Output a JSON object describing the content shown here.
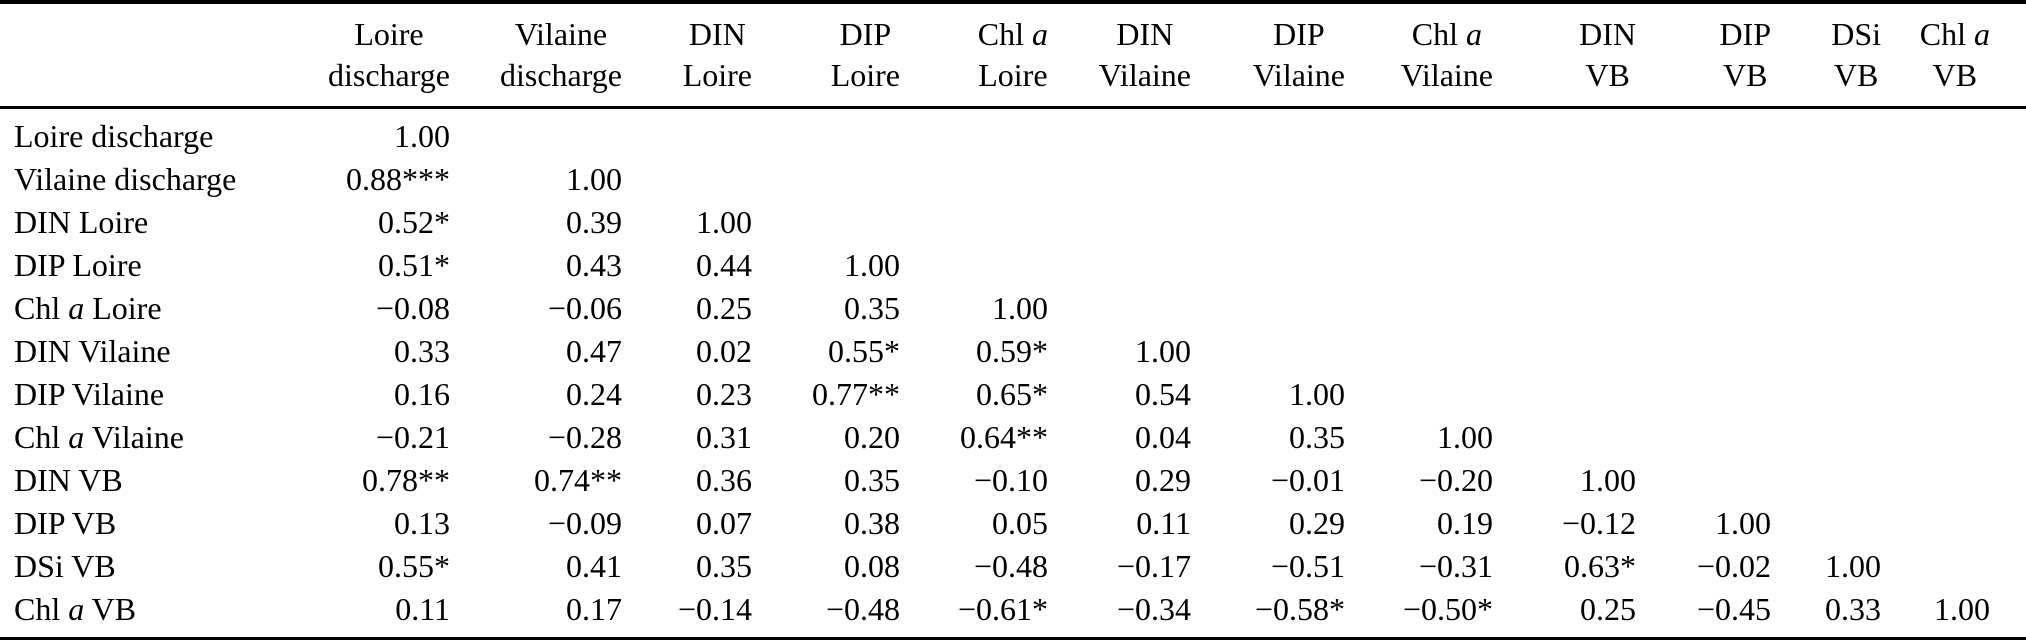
{
  "colors": {
    "background": "#ffffff",
    "text": "#000000",
    "rule": "#000000"
  },
  "table": {
    "corner_label": "",
    "columns": [
      {
        "line1": "Loire",
        "line2": "discharge"
      },
      {
        "line1": "Vilaine",
        "line2": "discharge"
      },
      {
        "line1": "DIN",
        "line2": "Loire"
      },
      {
        "line1": "DIP",
        "line2": "Loire"
      },
      {
        "line1": "Chl |a|",
        "line2": "Loire"
      },
      {
        "line1": "DIN",
        "line2": "Vilaine"
      },
      {
        "line1": "DIP",
        "line2": "Vilaine"
      },
      {
        "line1": "Chl |a|",
        "line2": "Vilaine"
      },
      {
        "line1": "DIN",
        "line2": "VB"
      },
      {
        "line1": "DIP",
        "line2": "VB"
      },
      {
        "line1": "DSi",
        "line2": "VB"
      },
      {
        "line1": "Chl |a|",
        "line2": "VB"
      }
    ],
    "rows": [
      {
        "label": "Loire discharge",
        "values": [
          "1.00",
          "",
          "",
          "",
          "",
          "",
          "",
          "",
          "",
          "",
          "",
          ""
        ]
      },
      {
        "label": "Vilaine discharge",
        "values": [
          "0.88***",
          "1.00",
          "",
          "",
          "",
          "",
          "",
          "",
          "",
          "",
          "",
          ""
        ]
      },
      {
        "label": "DIN Loire",
        "values": [
          "0.52*",
          "0.39",
          "1.00",
          "",
          "",
          "",
          "",
          "",
          "",
          "",
          "",
          ""
        ]
      },
      {
        "label": "DIP Loire",
        "values": [
          "0.51*",
          "0.43",
          "0.44",
          "1.00",
          "",
          "",
          "",
          "",
          "",
          "",
          "",
          ""
        ]
      },
      {
        "label": "Chl |a| Loire",
        "values": [
          "−0.08",
          "−0.06",
          "0.25",
          "0.35",
          "1.00",
          "",
          "",
          "",
          "",
          "",
          "",
          ""
        ]
      },
      {
        "label": "DIN Vilaine",
        "values": [
          "0.33",
          "0.47",
          "0.02",
          "0.55*",
          "0.59*",
          "1.00",
          "",
          "",
          "",
          "",
          "",
          ""
        ]
      },
      {
        "label": "DIP Vilaine",
        "values": [
          "0.16",
          "0.24",
          "0.23",
          "0.77**",
          "0.65*",
          "0.54",
          "1.00",
          "",
          "",
          "",
          "",
          ""
        ]
      },
      {
        "label": "Chl |a| Vilaine",
        "values": [
          "−0.21",
          "−0.28",
          "0.31",
          "0.20",
          "0.64**",
          "0.04",
          "0.35",
          "1.00",
          "",
          "",
          "",
          ""
        ]
      },
      {
        "label": "DIN VB",
        "values": [
          "0.78**",
          "0.74**",
          "0.36",
          "0.35",
          "−0.10",
          "0.29",
          "−0.01",
          "−0.20",
          "1.00",
          "",
          "",
          ""
        ]
      },
      {
        "label": "DIP VB",
        "values": [
          "0.13",
          "−0.09",
          "0.07",
          "0.38",
          "0.05",
          "0.11",
          "0.29",
          "0.19",
          "−0.12",
          "1.00",
          "",
          ""
        ]
      },
      {
        "label": "DSi VB",
        "values": [
          "0.55*",
          "0.41",
          "0.35",
          "0.08",
          "−0.48",
          "−0.17",
          "−0.51",
          "−0.31",
          "0.63*",
          "−0.02",
          "1.00",
          ""
        ]
      },
      {
        "label": "Chl |a| VB",
        "values": [
          "0.11",
          "0.17",
          "−0.14",
          "−0.48",
          "−0.61*",
          "−0.34",
          "−0.58*",
          "−0.50*",
          "0.25",
          "−0.45",
          "0.33",
          "1.00"
        ]
      }
    ]
  }
}
